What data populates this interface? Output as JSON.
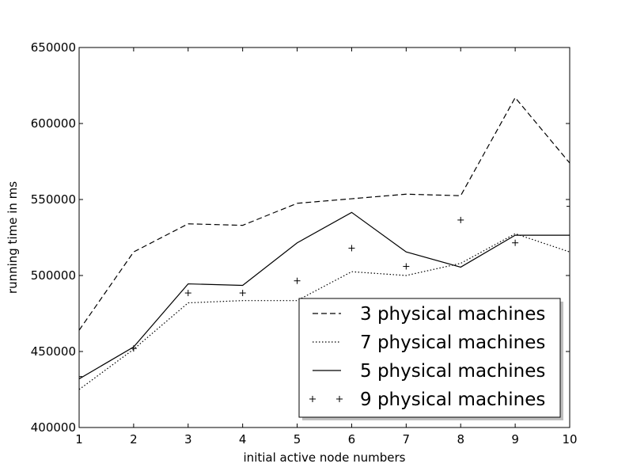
{
  "chart_data": {
    "type": "line",
    "title": "",
    "xlabel": "initial active node numbers",
    "ylabel": "running time in ms",
    "xlim": [
      1,
      10
    ],
    "ylim": [
      400000,
      650000
    ],
    "x_ticks": [
      1,
      2,
      3,
      4,
      5,
      6,
      7,
      8,
      9,
      10
    ],
    "y_ticks": [
      400000,
      450000,
      500000,
      550000,
      600000,
      650000
    ],
    "grid": false,
    "legend_position": "lower-right",
    "x": [
      1,
      2,
      3,
      4,
      5,
      6,
      7,
      8,
      9,
      10
    ],
    "series": [
      {
        "name": "3 physical machines",
        "style": "dashed",
        "marker": "none",
        "values": [
          464000,
          515500,
          534000,
          533000,
          547500,
          550500,
          553500,
          552500,
          617000,
          574000
        ]
      },
      {
        "name": "7 physical machines",
        "style": "dotted",
        "marker": "none",
        "values": [
          425000,
          451500,
          482000,
          483500,
          483500,
          502500,
          500000,
          508000,
          527500,
          515500
        ]
      },
      {
        "name": "5 physical machines",
        "style": "solid",
        "marker": "none",
        "values": [
          432000,
          453000,
          494500,
          493500,
          521500,
          541500,
          515500,
          505500,
          526500,
          526500
        ]
      },
      {
        "name": "9 physical machines",
        "style": "none",
        "marker": "plus",
        "values": [
          433500,
          452000,
          488500,
          488500,
          496500,
          518000,
          506000,
          536500,
          521500,
          545500
        ]
      }
    ],
    "colors": {
      "line": "#000000",
      "background": "#ffffff",
      "legend_shadow": "#bfbfbf"
    }
  }
}
